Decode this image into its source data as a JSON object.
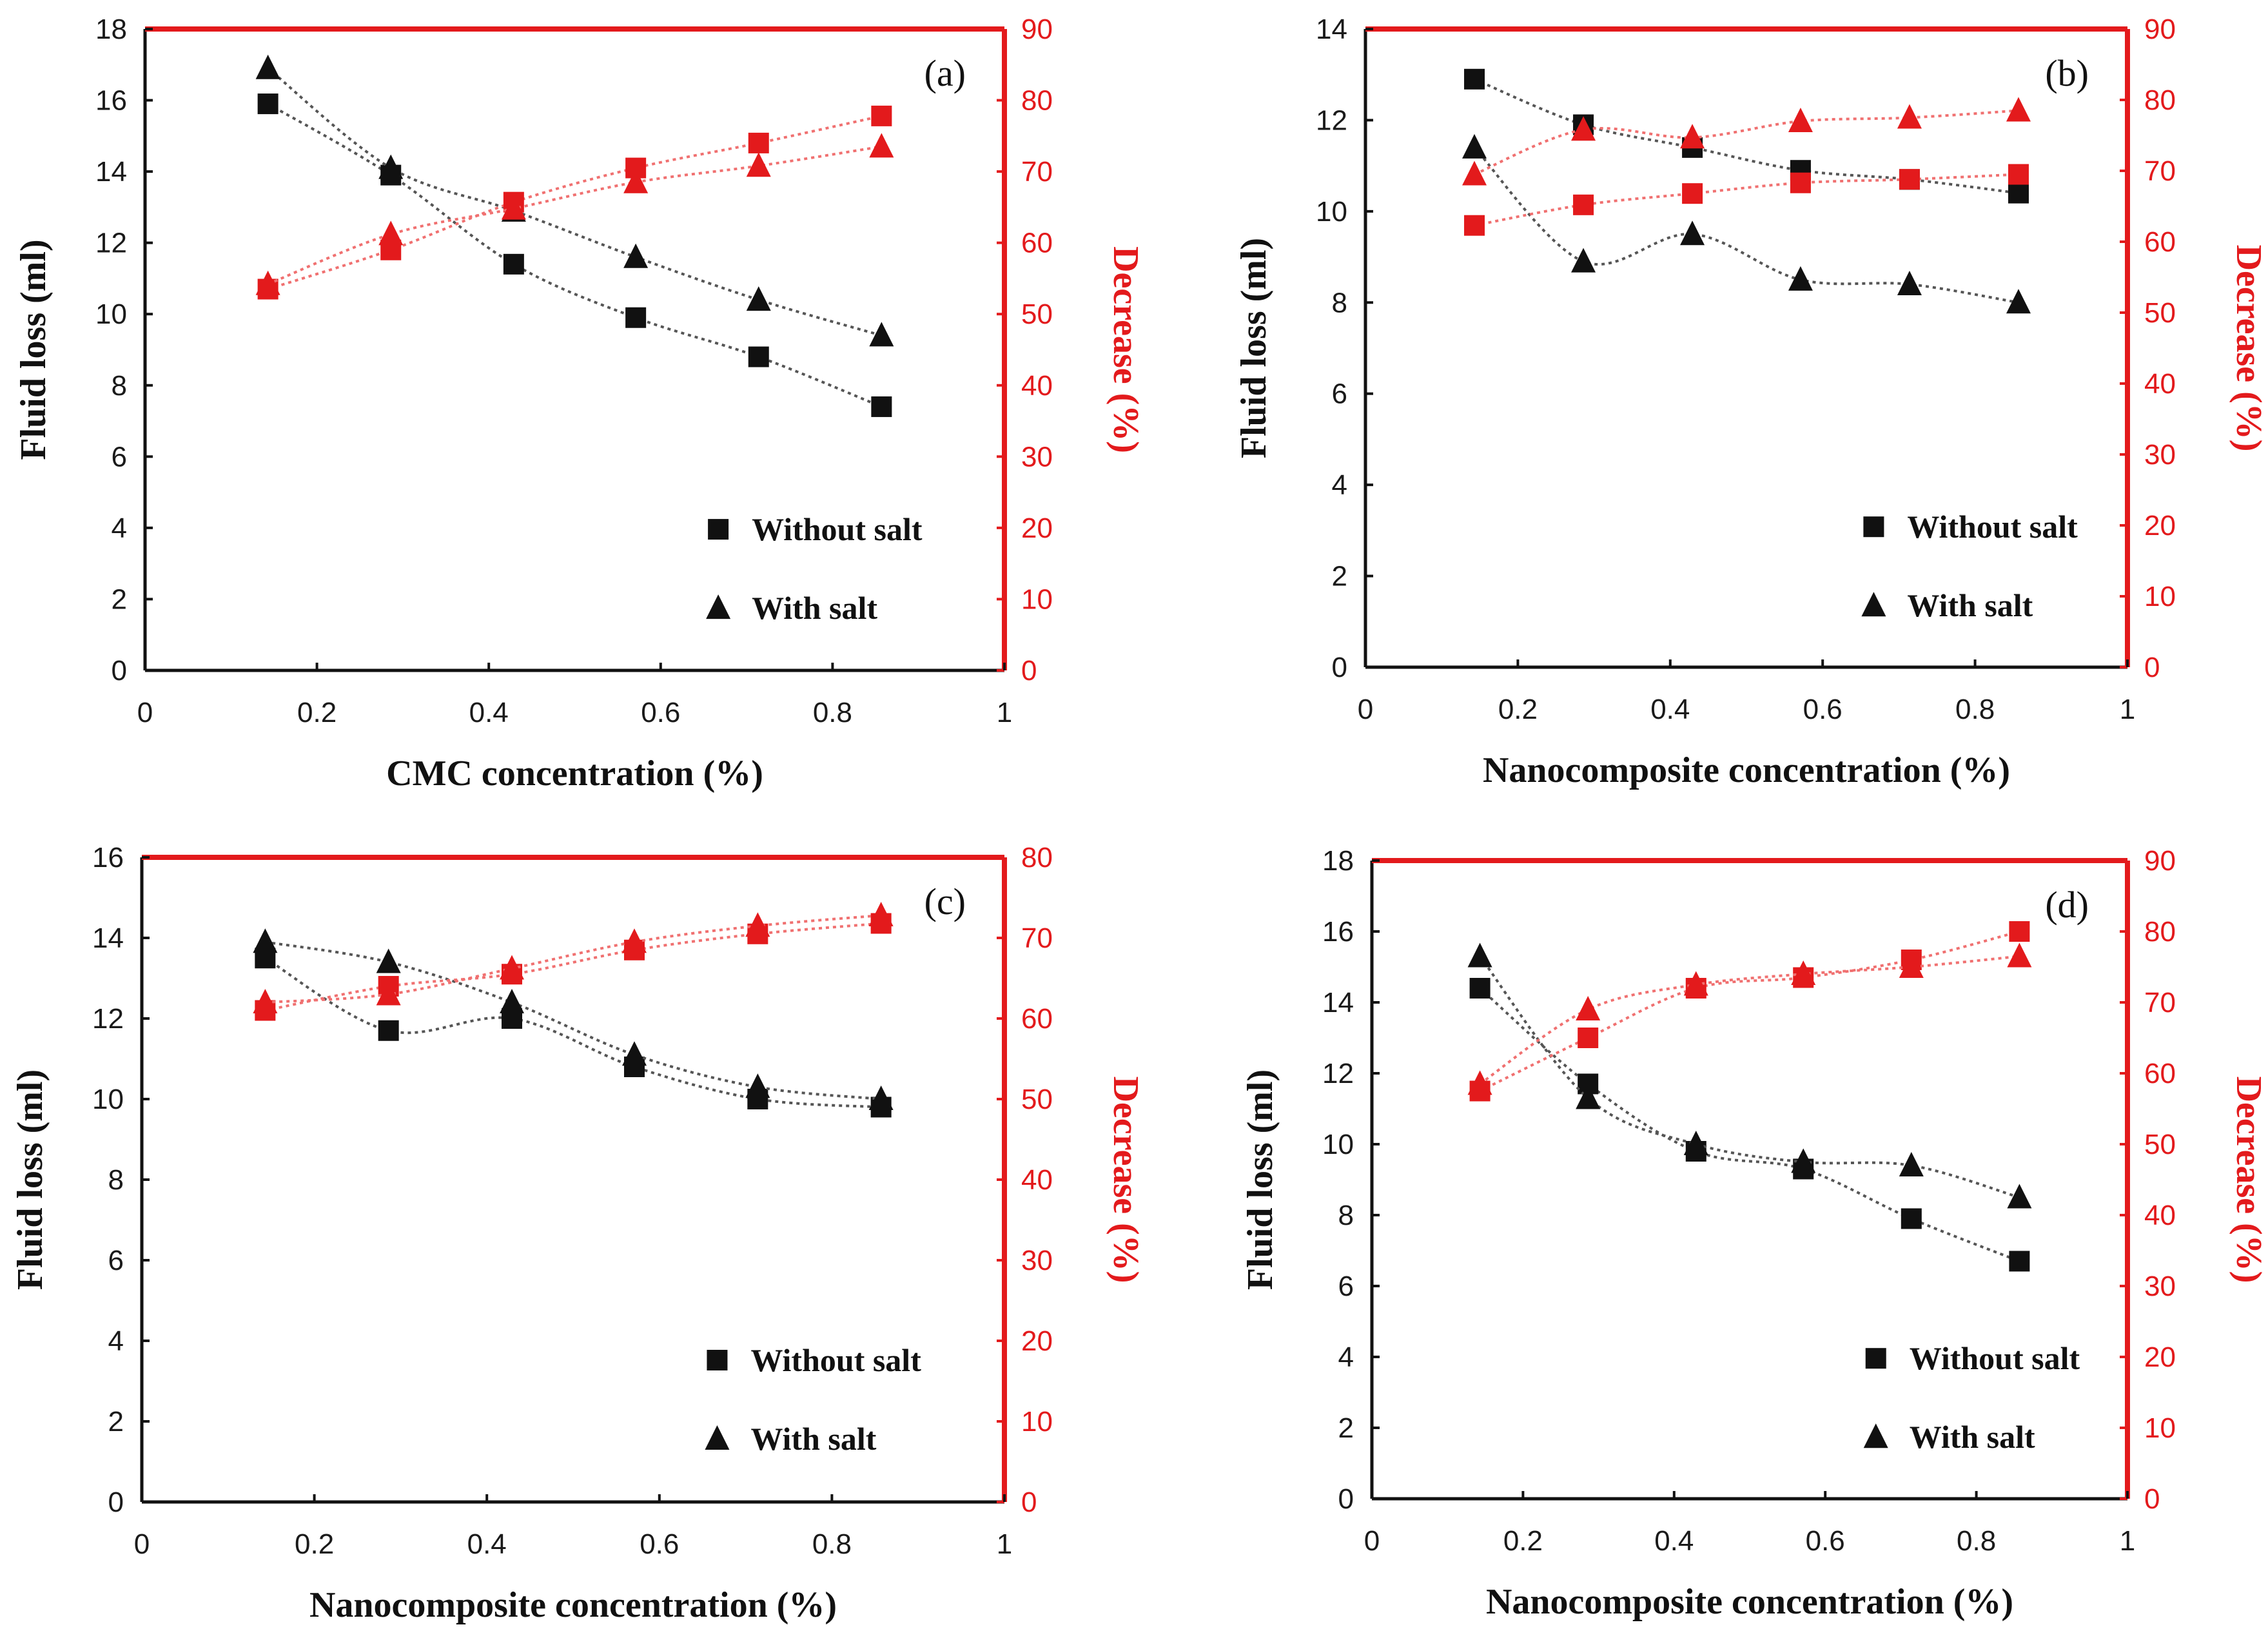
{
  "colors": {
    "black": "#111111",
    "red": "#e31a1c",
    "redLight": "#f07070"
  },
  "chart_data": [
    {
      "type": "scatter",
      "panel_label": "(a)",
      "xlabel": "CMC concentration (%)",
      "ylabel": "Fluid loss (ml)",
      "y2label": "Decrease (%)",
      "xlim": [
        0,
        1
      ],
      "ylim": [
        0,
        18
      ],
      "y2lim": [
        0,
        90
      ],
      "xticks": [
        "0",
        "0.2",
        "0.4",
        "0.6",
        "0.8",
        "1"
      ],
      "yticks": [
        "0",
        "2",
        "4",
        "6",
        "8",
        "10",
        "12",
        "14",
        "16",
        "18"
      ],
      "y2ticks": [
        "0",
        "10",
        "20",
        "30",
        "40",
        "50",
        "60",
        "70",
        "80",
        "90"
      ],
      "legend": {
        "without": "Without salt",
        "with": "With salt"
      },
      "x": [
        0.143,
        0.286,
        0.429,
        0.571,
        0.714,
        0.857
      ],
      "series": [
        {
          "name": "Without salt",
          "axis": "left",
          "marker": "square",
          "values": [
            15.9,
            13.9,
            11.4,
            9.9,
            8.8,
            7.4
          ]
        },
        {
          "name": "With salt",
          "axis": "left",
          "marker": "triangle",
          "values": [
            16.9,
            14.1,
            12.9,
            11.6,
            10.4,
            9.4
          ]
        },
        {
          "name": "Decrease - Without salt",
          "axis": "right",
          "marker": "square",
          "values": [
            53.5,
            59.0,
            65.7,
            70.5,
            74.0,
            77.8
          ]
        },
        {
          "name": "Decrease - With salt",
          "axis": "right",
          "marker": "triangle",
          "values": [
            54.2,
            61.2,
            64.8,
            68.5,
            70.8,
            73.5
          ]
        }
      ]
    },
    {
      "type": "scatter",
      "panel_label": "(b)",
      "xlabel": "Nanocomposite concentration (%)",
      "ylabel": "Fluid loss (ml)",
      "y2label": "Decrease (%)",
      "xlim": [
        0,
        1
      ],
      "ylim": [
        0,
        14
      ],
      "y2lim": [
        0,
        90
      ],
      "xticks": [
        "0",
        "0.2",
        "0.4",
        "0.6",
        "0.8",
        "1"
      ],
      "yticks": [
        "0",
        "2",
        "4",
        "6",
        "8",
        "10",
        "12",
        "14"
      ],
      "y2ticks": [
        "0",
        "10",
        "20",
        "30",
        "40",
        "50",
        "60",
        "70",
        "80",
        "90"
      ],
      "legend": {
        "without": "Without salt",
        "with": "With salt"
      },
      "x": [
        0.143,
        0.286,
        0.429,
        0.571,
        0.714,
        0.857
      ],
      "series": [
        {
          "name": "Without salt",
          "axis": "left",
          "marker": "square",
          "values": [
            12.9,
            11.9,
            11.4,
            10.9,
            10.7,
            10.4
          ]
        },
        {
          "name": "With salt",
          "axis": "left",
          "marker": "triangle",
          "values": [
            11.4,
            8.9,
            9.5,
            8.5,
            8.4,
            8.0
          ]
        },
        {
          "name": "Decrease - Without salt",
          "axis": "right",
          "marker": "square",
          "values": [
            62.3,
            65.2,
            66.8,
            68.3,
            68.8,
            69.5
          ]
        },
        {
          "name": "Decrease - With salt",
          "axis": "right",
          "marker": "triangle",
          "values": [
            69.5,
            75.8,
            74.7,
            77.0,
            77.5,
            78.5
          ]
        }
      ]
    },
    {
      "type": "scatter",
      "panel_label": "(c)",
      "xlabel": "Nanocomposite concentration (%)",
      "ylabel": "Fluid loss (ml)",
      "y2label": "Decrease (%)",
      "xlim": [
        0,
        1
      ],
      "ylim": [
        0,
        16
      ],
      "y2lim": [
        0,
        80
      ],
      "xticks": [
        "0",
        "0.2",
        "0.4",
        "0.6",
        "0.8",
        "1"
      ],
      "yticks": [
        "0",
        "2",
        "4",
        "6",
        "8",
        "10",
        "12",
        "14",
        "16"
      ],
      "y2ticks": [
        "0",
        "10",
        "20",
        "30",
        "40",
        "50",
        "60",
        "70",
        "80"
      ],
      "legend": {
        "without": "Without salt",
        "with": "With salt"
      },
      "x": [
        0.143,
        0.286,
        0.429,
        0.571,
        0.714,
        0.857
      ],
      "series": [
        {
          "name": "Without salt",
          "axis": "left",
          "marker": "square",
          "values": [
            13.5,
            11.7,
            12.0,
            10.8,
            10.0,
            9.8
          ]
        },
        {
          "name": "With salt",
          "axis": "left",
          "marker": "triangle",
          "values": [
            13.9,
            13.4,
            12.4,
            11.1,
            10.3,
            10.0
          ]
        },
        {
          "name": "Decrease - Without salt",
          "axis": "right",
          "marker": "square",
          "values": [
            61.0,
            64.0,
            65.5,
            68.5,
            70.5,
            71.8
          ]
        },
        {
          "name": "Decrease - With salt",
          "axis": "right",
          "marker": "triangle",
          "values": [
            62.0,
            63.0,
            66.2,
            69.5,
            71.5,
            72.8
          ]
        }
      ]
    },
    {
      "type": "scatter",
      "panel_label": "(d)",
      "xlabel": "Nanocomposite concentration (%)",
      "ylabel": "Fluid loss (ml)",
      "y2label": "Decrease (%)",
      "xlim": [
        0,
        1
      ],
      "ylim": [
        0,
        18
      ],
      "y2lim": [
        0,
        90
      ],
      "xticks": [
        "0",
        "0.2",
        "0.4",
        "0.6",
        "0.8",
        "1"
      ],
      "yticks": [
        "0",
        "2",
        "4",
        "6",
        "8",
        "10",
        "12",
        "14",
        "16",
        "18"
      ],
      "y2ticks": [
        "0",
        "10",
        "20",
        "30",
        "40",
        "50",
        "60",
        "70",
        "80",
        "90"
      ],
      "legend": {
        "without": "Without salt",
        "with": "With salt"
      },
      "x": [
        0.143,
        0.286,
        0.429,
        0.571,
        0.714,
        0.857
      ],
      "series": [
        {
          "name": "Without salt",
          "axis": "left",
          "marker": "square",
          "values": [
            14.4,
            11.7,
            9.8,
            9.3,
            7.9,
            6.7
          ]
        },
        {
          "name": "With salt",
          "axis": "left",
          "marker": "triangle",
          "values": [
            15.3,
            11.3,
            10.0,
            9.5,
            9.4,
            8.5
          ]
        },
        {
          "name": "Decrease - Without salt",
          "axis": "right",
          "marker": "square",
          "values": [
            57.5,
            65.0,
            72.0,
            73.5,
            76.0,
            80.0
          ]
        },
        {
          "name": "Decrease - With salt",
          "axis": "right",
          "marker": "triangle",
          "values": [
            58.5,
            69.0,
            72.5,
            74.0,
            75.0,
            76.5
          ]
        }
      ]
    }
  ]
}
